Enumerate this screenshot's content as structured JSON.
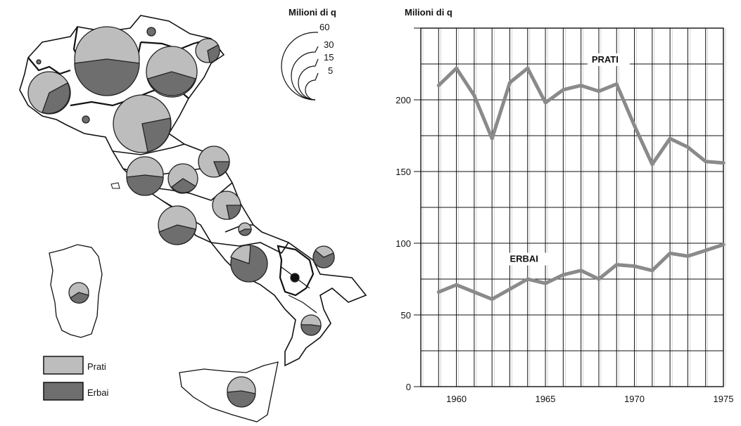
{
  "map_panel": {
    "legend_title": "Milioni di q",
    "size_legend_values": [
      "60",
      "30",
      "15",
      "5"
    ],
    "legend_items": [
      {
        "label": "Prati",
        "color": "#bdbdbd"
      },
      {
        "label": "Erbai",
        "color": "#6e6e6e"
      }
    ]
  },
  "chart_data": {
    "type": "line",
    "ylabel": "Milioni di q",
    "ylim": [
      0,
      250
    ],
    "xlim": [
      1958,
      1975
    ],
    "x_ticks": [
      "1960",
      "1965",
      "1970",
      "1975"
    ],
    "y_ticks": [
      "0",
      "50",
      "100",
      "150",
      "200"
    ],
    "grid": true,
    "series": [
      {
        "name": "PRATI",
        "color": "#8a8a8a",
        "x": [
          1959,
          1960,
          1961,
          1962,
          1963,
          1964,
          1965,
          1966,
          1967,
          1968,
          1969,
          1970,
          1971,
          1972,
          1973,
          1974,
          1975
        ],
        "y": [
          210,
          222,
          203,
          173,
          212,
          222,
          198,
          207,
          210,
          206,
          211,
          182,
          155,
          173,
          167,
          157,
          156
        ]
      },
      {
        "name": "ERBAI",
        "color": "#8a8a8a",
        "x": [
          1959,
          1960,
          1961,
          1962,
          1963,
          1964,
          1965,
          1966,
          1967,
          1968,
          1969,
          1970,
          1971,
          1972,
          1973,
          1974,
          1975
        ],
        "y": [
          66,
          71,
          66,
          61,
          68,
          75,
          72,
          78,
          81,
          75,
          85,
          84,
          81,
          93,
          91,
          95,
          99
        ]
      }
    ]
  }
}
